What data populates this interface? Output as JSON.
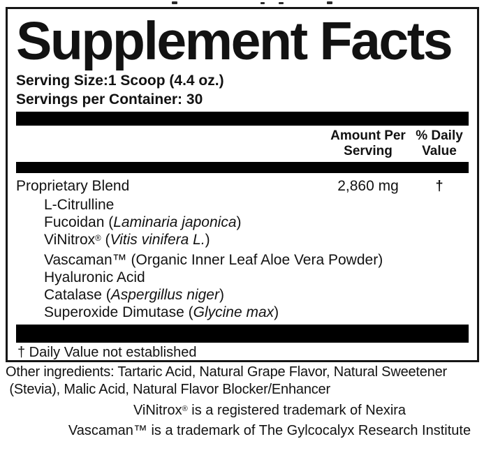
{
  "colors": {
    "ink": "#121212",
    "bar": "#000000"
  },
  "panel": {
    "title": "Supplement Facts",
    "serving_size": "Serving Size:1 Scoop (4.4 oz.)",
    "servings_per_container": "Servings per Container: 30",
    "columns": {
      "amount_line1": "Amount Per",
      "amount_line2": "Serving",
      "dv_line1": "% Daily",
      "dv_line2": "Value"
    },
    "blend": {
      "name": "Proprietary Blend",
      "amount": "2,860 mg",
      "daily_value": "†",
      "ingredients": [
        {
          "prefix": "L-Citrulline",
          "latin": "",
          "suffix": ""
        },
        {
          "prefix": "Fucoidan (",
          "latin": "Laminaria japonica",
          "suffix": ")"
        },
        {
          "prefix": "ViNitrox® (",
          "latin": "Vitis vinifera L.",
          "suffix": ")"
        },
        {
          "prefix": "Vascaman™ (Organic Inner Leaf Aloe Vera Powder)",
          "latin": "",
          "suffix": ""
        },
        {
          "prefix": "Hyaluronic Acid",
          "latin": "",
          "suffix": ""
        },
        {
          "prefix": "Catalase (",
          "latin": "Aspergillus niger",
          "suffix": ")"
        },
        {
          "prefix": "Superoxide Dimutase (",
          "latin": "Glycine max",
          "suffix": ")"
        }
      ]
    },
    "footnote": "† Daily Value not established"
  },
  "below_panel": {
    "other_ingredients_line1": "Other ingredients: Tartaric Acid, Natural Grape Flavor, Natural Sweetener",
    "other_ingredients_line2": " (Stevia), Malic Acid, Natural Flavor Blocker/Enhancer",
    "trademark_1": "ViNitrox® is a registered trademark of Nexira",
    "trademark_2": "Vascaman™ is a trademark of The Gylcocalyx Research Institute"
  }
}
